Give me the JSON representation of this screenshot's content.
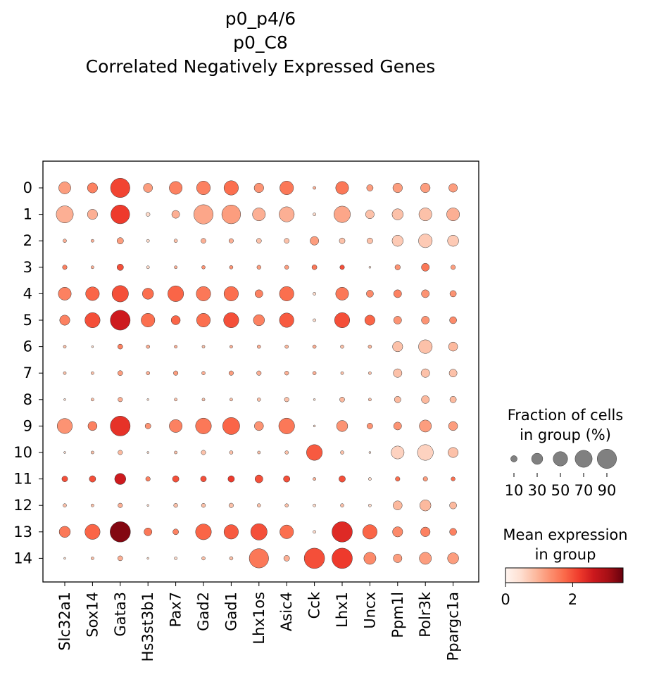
{
  "chart_data": {
    "type": "dotplot",
    "title_lines": [
      "p0_p4/6",
      "p0_C8",
      "Correlated Negatively Expressed Genes"
    ],
    "genes": [
      "Slc32a1",
      "Sox14",
      "Gata3",
      "Hs3st3b1",
      "Pax7",
      "Gad2",
      "Gad1",
      "Lhx1os",
      "Asic4",
      "Cck",
      "Lhx1",
      "Uncx",
      "Ppm1l",
      "Polr3k",
      "Ppargc1a"
    ],
    "groups": [
      "0",
      "1",
      "2",
      "3",
      "4",
      "5",
      "6",
      "7",
      "8",
      "9",
      "10",
      "11",
      "12",
      "13",
      "14"
    ],
    "fraction_pct": [
      [
        35,
        25,
        90,
        20,
        40,
        45,
        50,
        22,
        45,
        2,
        40,
        10,
        22,
        22,
        18
      ],
      [
        70,
        25,
        85,
        4,
        15,
        90,
        85,
        40,
        55,
        2,
        65,
        18,
        30,
        40,
        40
      ],
      [
        3,
        2,
        10,
        2,
        3,
        6,
        5,
        6,
        6,
        18,
        8,
        8,
        30,
        45,
        30
      ],
      [
        5,
        2,
        10,
        2,
        2,
        3,
        3,
        4,
        4,
        6,
        5,
        1,
        7,
        15,
        5
      ],
      [
        40,
        45,
        65,
        30,
        60,
        50,
        50,
        15,
        50,
        2,
        40,
        12,
        15,
        15,
        10
      ],
      [
        25,
        55,
        95,
        45,
        20,
        45,
        55,
        30,
        50,
        2,
        55,
        25,
        15,
        15,
        12
      ],
      [
        2,
        1,
        6,
        3,
        2,
        2,
        2,
        3,
        3,
        3,
        3,
        3,
        25,
        45,
        20
      ],
      [
        2,
        2,
        6,
        3,
        5,
        3,
        5,
        5,
        4,
        3,
        2,
        2,
        18,
        18,
        15
      ],
      [
        1,
        2,
        5,
        1,
        2,
        2,
        2,
        3,
        5,
        1,
        6,
        2,
        10,
        15,
        10
      ],
      [
        55,
        20,
        95,
        8,
        40,
        60,
        70,
        20,
        60,
        1,
        30,
        8,
        15,
        35,
        20
      ],
      [
        1,
        2,
        5,
        1,
        2,
        5,
        3,
        2,
        3,
        60,
        3,
        1,
        40,
        60,
        25
      ],
      [
        8,
        10,
        30,
        5,
        10,
        8,
        10,
        15,
        10,
        2,
        10,
        2,
        5,
        5,
        4
      ],
      [
        3,
        2,
        5,
        1,
        4,
        4,
        5,
        3,
        3,
        2,
        3,
        2,
        20,
        30,
        12
      ],
      [
        30,
        55,
        100,
        15,
        8,
        60,
        50,
        65,
        45,
        2,
        100,
        50,
        25,
        22,
        12
      ],
      [
        1,
        2,
        6,
        1,
        2,
        3,
        3,
        90,
        8,
        100,
        100,
        35,
        18,
        35,
        30
      ]
    ],
    "mean_expr": [
      [
        1.2,
        1.5,
        2.1,
        1.2,
        1.5,
        1.5,
        1.7,
        1.3,
        1.6,
        1.0,
        1.6,
        1.2,
        1.2,
        1.2,
        1.2
      ],
      [
        1.0,
        1.0,
        2.2,
        0.5,
        1.0,
        1.1,
        1.2,
        1.0,
        1.0,
        0.5,
        1.1,
        0.8,
        0.8,
        0.8,
        1.0
      ],
      [
        1.0,
        1.0,
        1.2,
        0.5,
        0.8,
        1.0,
        1.0,
        0.8,
        0.8,
        1.2,
        0.8,
        0.8,
        0.7,
        0.7,
        0.7
      ],
      [
        1.5,
        1.0,
        2.0,
        0.5,
        1.0,
        1.3,
        1.3,
        1.2,
        1.2,
        1.6,
        2.0,
        0.5,
        1.3,
        1.6,
        1.2
      ],
      [
        1.5,
        1.8,
        2.0,
        1.7,
        1.8,
        1.6,
        1.7,
        1.5,
        1.7,
        0.5,
        1.6,
        1.4,
        1.5,
        1.3,
        1.3
      ],
      [
        1.5,
        2.0,
        2.6,
        1.7,
        1.8,
        1.7,
        2.0,
        1.5,
        1.9,
        0.5,
        2.0,
        1.8,
        1.3,
        1.3,
        1.4
      ],
      [
        0.8,
        0.5,
        1.5,
        1.0,
        1.0,
        0.8,
        1.0,
        1.0,
        0.9,
        1.0,
        0.8,
        0.9,
        0.8,
        0.8,
        0.9
      ],
      [
        0.8,
        0.8,
        1.2,
        1.0,
        1.2,
        1.0,
        1.2,
        1.0,
        1.0,
        1.0,
        0.8,
        0.8,
        0.8,
        0.8,
        0.8
      ],
      [
        0.5,
        0.8,
        1.0,
        0.5,
        0.8,
        0.8,
        0.8,
        0.8,
        0.8,
        0.5,
        0.9,
        0.8,
        0.9,
        0.9,
        0.9
      ],
      [
        1.3,
        1.5,
        2.3,
        1.3,
        1.5,
        1.6,
        1.8,
        1.3,
        1.6,
        0.5,
        1.3,
        1.3,
        1.3,
        1.2,
        1.2
      ],
      [
        0.5,
        0.8,
        0.9,
        0.5,
        0.8,
        0.8,
        0.8,
        0.8,
        0.8,
        1.9,
        0.8,
        0.5,
        0.6,
        0.6,
        0.8
      ],
      [
        2.0,
        2.0,
        2.6,
        1.5,
        2.0,
        2.0,
        2.2,
        2.0,
        2.0,
        1.0,
        2.0,
        0.5,
        1.7,
        1.2,
        1.7
      ],
      [
        0.8,
        0.8,
        1.0,
        0.5,
        0.8,
        0.8,
        0.8,
        0.8,
        0.8,
        0.5,
        0.8,
        0.5,
        0.9,
        0.9,
        0.9
      ],
      [
        1.6,
        1.8,
        3.3,
        1.6,
        1.5,
        1.8,
        1.9,
        2.0,
        1.7,
        0.5,
        2.4,
        1.8,
        1.4,
        1.5,
        1.5
      ],
      [
        0.5,
        0.8,
        1.0,
        0.5,
        0.5,
        0.8,
        0.8,
        1.6,
        1.0,
        2.0,
        2.2,
        1.4,
        1.2,
        1.2,
        1.2
      ]
    ],
    "size_legend": {
      "title_lines": [
        "Fraction of cells",
        "in group (%)"
      ],
      "values": [
        10,
        30,
        50,
        70,
        90
      ]
    },
    "color_legend": {
      "title_lines": [
        "Mean expression",
        "in group"
      ],
      "range": [
        0,
        3.5
      ],
      "ticks": [
        0,
        2
      ],
      "colormap": "Reds",
      "colors": [
        "#fff5f0",
        "#fee0d2",
        "#fcbba1",
        "#fc9272",
        "#fb6a4a",
        "#ef3b2c",
        "#cb181d",
        "#a50f15",
        "#67000d"
      ]
    }
  }
}
